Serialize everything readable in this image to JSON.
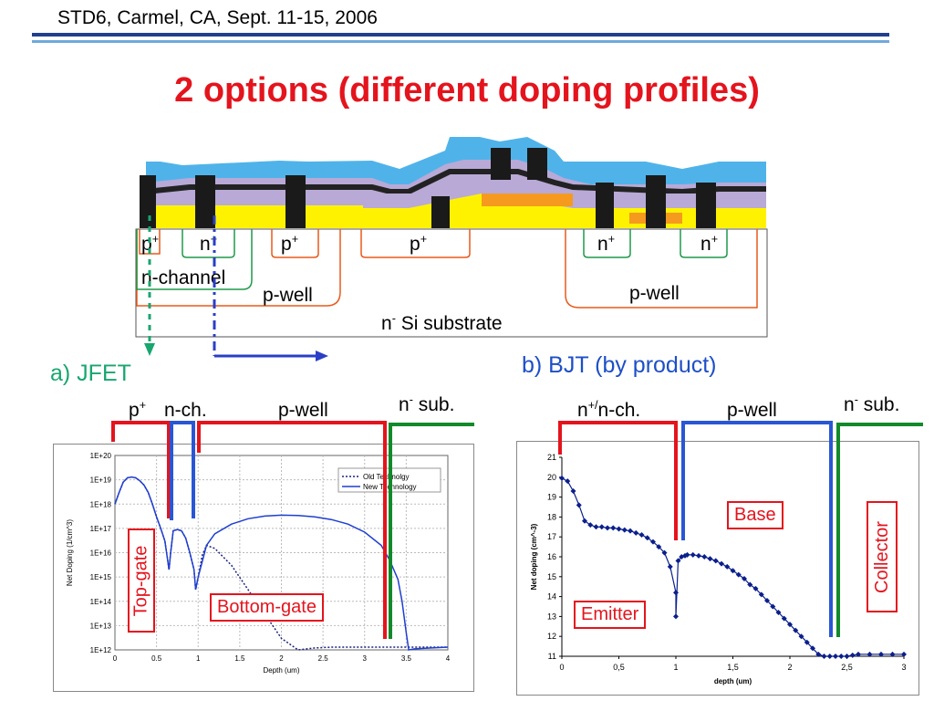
{
  "header": {
    "text": "STD6, Carmel, CA, Sept. 11-15, 2006"
  },
  "title": "2 options (different doping profiles)",
  "cross_section": {
    "top_regions": [
      "p",
      "n",
      "p",
      "p",
      "n",
      "n"
    ],
    "top_sup": "+",
    "n_channel": "n-channel",
    "p_well_left": "p-well",
    "p_well_right": "p-well",
    "substrate_base": "n",
    "substrate_sup": "-",
    "substrate_text": " Si substrate"
  },
  "section_a": {
    "title": "a) JFET",
    "labels": {
      "p_plus": "p",
      "p_plus_sup": "+",
      "n_ch": "n-ch.",
      "p_well": "p-well",
      "n_sub_base": "n",
      "n_sub_sup": "-",
      "n_sub_text": " sub."
    },
    "top_gate": "Top-gate",
    "bottom_gate": "Bottom-gate"
  },
  "section_b": {
    "title": "b) BJT (by product)",
    "labels": {
      "n_nch_base": "n",
      "n_nch_sup": "+/",
      "n_nch_text": "n-ch.",
      "p_well": "p-well",
      "n_sub_base": "n",
      "n_sub_sup": "-",
      "n_sub_text": " sub."
    },
    "base": "Base",
    "collector": "Collector",
    "emitter": "Emitter"
  },
  "colors": {
    "title": "#e4141d",
    "jfet": "#18a66f",
    "bjt": "#1d4fc7",
    "red_bracket": "#e4141d",
    "blue_bracket": "#2a56d6",
    "green_bracket": "#118a2a"
  },
  "chart_data": [
    {
      "type": "line",
      "xlabel": "Depth (um)",
      "ylabel": "Net Doping (1/cm^3)",
      "log_y": true,
      "xlim": [
        0,
        4
      ],
      "ylim": [
        1000000000000.0,
        1e+20
      ],
      "grid": true,
      "legend": "top-right",
      "x_ticks": [
        "0",
        "0.5",
        "1",
        "1.5",
        "2",
        "2.5",
        "3",
        "3.5",
        "4"
      ],
      "y_ticks": [
        "1E+12",
        "1E+13",
        "1E+14",
        "1E+15",
        "1E+16",
        "1E+17",
        "1E+18",
        "1E+19",
        "1E+20"
      ],
      "series": [
        {
          "name": "Old Technolgy",
          "style": "dotted",
          "x": [
            0.0,
            0.05,
            0.1,
            0.15,
            0.2,
            0.25,
            0.3,
            0.35,
            0.4,
            0.45,
            0.5,
            0.55,
            0.6,
            0.65,
            0.67,
            0.7,
            0.75,
            0.8,
            0.85,
            0.9,
            0.95,
            0.97,
            1.0,
            1.05,
            1.1,
            1.2,
            1.4,
            1.6,
            1.8,
            2.0,
            2.2,
            2.4,
            2.6,
            2.8,
            3.0,
            3.2,
            3.5,
            3.8,
            4.0
          ],
          "y": [
            1e+18,
            3e+18,
            8e+18,
            1.2e+19,
            1.3e+19,
            1.2e+19,
            9e+18,
            6e+18,
            3e+18,
            1e+18,
            3e+17,
            1e+17,
            3e+16,
            2000000000000000.0,
            1e+16,
            8e+16,
            9e+16,
            8e+16,
            4e+16,
            1e+16,
            2000000000000000.0,
            300000000000000.0,
            1000000000000000.0,
            8000000000000000.0,
            2e+16,
            1.5e+16,
            3000000000000000.0,
            300000000000000.0,
            30000000000000.0,
            3000000000000.0,
            1000000000000.0,
            1200000000000.0,
            1300000000000.0,
            1300000000000.0,
            1300000000000.0,
            1300000000000.0,
            1300000000000.0,
            1300000000000.0,
            1300000000000.0
          ]
        },
        {
          "name": "New Technology",
          "style": "solid",
          "x": [
            0.0,
            0.05,
            0.1,
            0.15,
            0.2,
            0.25,
            0.3,
            0.35,
            0.4,
            0.45,
            0.5,
            0.55,
            0.6,
            0.65,
            0.67,
            0.7,
            0.75,
            0.8,
            0.85,
            0.9,
            0.95,
            0.97,
            1.0,
            1.1,
            1.2,
            1.4,
            1.6,
            1.8,
            2.0,
            2.2,
            2.4,
            2.6,
            2.8,
            3.0,
            3.2,
            3.3,
            3.4,
            3.45,
            3.5,
            3.53,
            3.6,
            3.8,
            4.0
          ],
          "y": [
            1e+18,
            3e+18,
            8e+18,
            1.2e+19,
            1.3e+19,
            1.2e+19,
            9e+18,
            6e+18,
            3e+18,
            1e+18,
            3e+17,
            1e+17,
            3e+16,
            2000000000000000.0,
            1e+16,
            8e+16,
            9e+16,
            8e+16,
            4e+16,
            1e+16,
            2000000000000000.0,
            300000000000000.0,
            1000000000000000.0,
            2e+16,
            6e+16,
            1.5e+17,
            2.5e+17,
            3.2e+17,
            3.5e+17,
            3.4e+17,
            3e+17,
            2.3e+17,
            1.5e+17,
            7e+16,
            2e+16,
            5000000000000000.0,
            800000000000000.0,
            100000000000000.0,
            5000000000000.0,
            1000000000000.0,
            1100000000000.0,
            1200000000000.0,
            1300000000000.0
          ]
        }
      ]
    },
    {
      "type": "scatter",
      "xlabel": "depth (um)",
      "ylabel": "Net doping (cm^-3)",
      "xlim": [
        0,
        3
      ],
      "ylim": [
        11,
        21
      ],
      "grid": false,
      "x_ticks": [
        "0",
        "0,5",
        "1",
        "1,5",
        "2",
        "2,5",
        "3"
      ],
      "y_ticks": [
        "11",
        "12",
        "13",
        "14",
        "15",
        "16",
        "17",
        "18",
        "19",
        "20",
        "21"
      ],
      "series": [
        {
          "name": "",
          "x": [
            0.0,
            0.05,
            0.1,
            0.15,
            0.2,
            0.25,
            0.3,
            0.35,
            0.4,
            0.45,
            0.5,
            0.55,
            0.6,
            0.65,
            0.7,
            0.75,
            0.8,
            0.85,
            0.9,
            0.95,
            1.0,
            1.0,
            1.02,
            1.05,
            1.08,
            1.1,
            1.15,
            1.2,
            1.25,
            1.3,
            1.35,
            1.4,
            1.45,
            1.5,
            1.55,
            1.6,
            1.65,
            1.7,
            1.75,
            1.8,
            1.85,
            1.9,
            1.95,
            2.0,
            2.05,
            2.1,
            2.15,
            2.2,
            2.25,
            2.3,
            2.35,
            2.4,
            2.45,
            2.5,
            2.55,
            2.6,
            2.7,
            2.8,
            2.9,
            3.0
          ],
          "y": [
            19.95,
            19.8,
            19.3,
            18.6,
            17.8,
            17.6,
            17.5,
            17.5,
            17.45,
            17.45,
            17.4,
            17.35,
            17.3,
            17.2,
            17.1,
            16.95,
            16.75,
            16.5,
            16.2,
            15.5,
            14.2,
            13.0,
            15.8,
            16.0,
            16.05,
            16.1,
            16.1,
            16.05,
            16.0,
            15.9,
            15.8,
            15.65,
            15.5,
            15.3,
            15.1,
            14.9,
            14.6,
            14.4,
            14.1,
            13.8,
            13.5,
            13.2,
            12.9,
            12.6,
            12.3,
            12.0,
            11.7,
            11.4,
            11.1,
            10.8,
            10.6,
            10.5,
            10.9,
            11.0,
            11.05,
            11.1,
            11.1,
            11.1,
            11.1,
            11.1
          ]
        }
      ]
    }
  ]
}
